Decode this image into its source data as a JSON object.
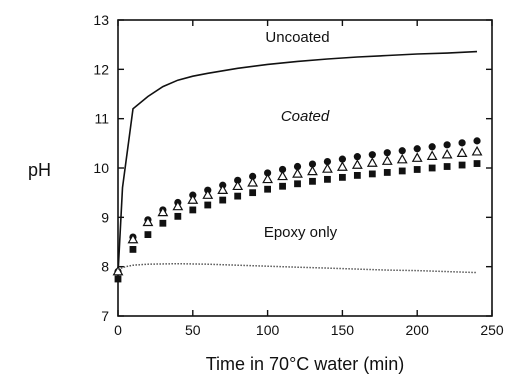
{
  "chart_data": {
    "type": "scatter",
    "xlabel": "Time in 70°C water (min)",
    "ylabel": "pH",
    "xlim": [
      0,
      250
    ],
    "ylim": [
      7,
      13
    ],
    "xticks": [
      0,
      50,
      100,
      150,
      200,
      250
    ],
    "yticks": [
      7,
      8,
      9,
      10,
      11,
      12,
      13
    ],
    "grid": false,
    "annotations": [
      {
        "text": "Uncoated",
        "x": 120,
        "y": 12.55,
        "italic": false
      },
      {
        "text": "Coated",
        "x": 125,
        "y": 10.95,
        "italic": true
      },
      {
        "text": "Epoxy only",
        "x": 122,
        "y": 8.6,
        "italic": false
      }
    ],
    "series": [
      {
        "marker": "solid-line",
        "color": "#111111",
        "x": [
          0,
          3,
          10,
          20,
          30,
          40,
          50,
          60,
          80,
          100,
          120,
          140,
          160,
          180,
          200,
          220,
          240
        ],
        "y": [
          7.85,
          9.6,
          11.2,
          11.45,
          11.65,
          11.78,
          11.86,
          11.92,
          12.02,
          12.1,
          12.16,
          12.21,
          12.25,
          12.28,
          12.31,
          12.33,
          12.36
        ]
      },
      {
        "marker": "circle",
        "color": "#111111",
        "x": [
          0,
          10,
          20,
          30,
          40,
          50,
          60,
          70,
          80,
          90,
          100,
          110,
          120,
          130,
          140,
          150,
          160,
          170,
          180,
          190,
          200,
          210,
          220,
          230,
          240
        ],
        "y": [
          7.9,
          8.6,
          8.95,
          9.15,
          9.3,
          9.45,
          9.55,
          9.65,
          9.75,
          9.83,
          9.9,
          9.97,
          10.03,
          10.08,
          10.13,
          10.18,
          10.23,
          10.27,
          10.31,
          10.35,
          10.39,
          10.43,
          10.47,
          10.51,
          10.55
        ]
      },
      {
        "marker": "open-triangle",
        "color": "#111111",
        "x": [
          0,
          10,
          20,
          30,
          40,
          50,
          60,
          70,
          80,
          90,
          100,
          110,
          120,
          130,
          140,
          150,
          160,
          170,
          180,
          190,
          200,
          210,
          220,
          230,
          240
        ],
        "y": [
          7.9,
          8.55,
          8.9,
          9.1,
          9.22,
          9.35,
          9.45,
          9.55,
          9.63,
          9.7,
          9.77,
          9.83,
          9.88,
          9.93,
          9.98,
          10.02,
          10.06,
          10.1,
          10.14,
          10.17,
          10.2,
          10.24,
          10.27,
          10.3,
          10.33
        ]
      },
      {
        "marker": "square",
        "color": "#111111",
        "x": [
          0,
          10,
          20,
          30,
          40,
          50,
          60,
          70,
          80,
          90,
          100,
          110,
          120,
          130,
          140,
          150,
          160,
          170,
          180,
          190,
          200,
          210,
          220,
          230,
          240
        ],
        "y": [
          7.75,
          8.35,
          8.65,
          8.88,
          9.02,
          9.15,
          9.25,
          9.35,
          9.43,
          9.5,
          9.57,
          9.63,
          9.68,
          9.73,
          9.77,
          9.81,
          9.85,
          9.88,
          9.91,
          9.94,
          9.97,
          10.0,
          10.03,
          10.06,
          10.09
        ]
      },
      {
        "marker": "dotted-line",
        "color": "#555555",
        "x": [
          0,
          5,
          10,
          20,
          40,
          60,
          80,
          100,
          120,
          140,
          160,
          180,
          200,
          220,
          240
        ],
        "y": [
          7.95,
          8.0,
          8.03,
          8.05,
          8.06,
          8.05,
          8.03,
          8.01,
          7.99,
          7.97,
          7.95,
          7.93,
          7.92,
          7.9,
          7.88
        ]
      }
    ]
  }
}
